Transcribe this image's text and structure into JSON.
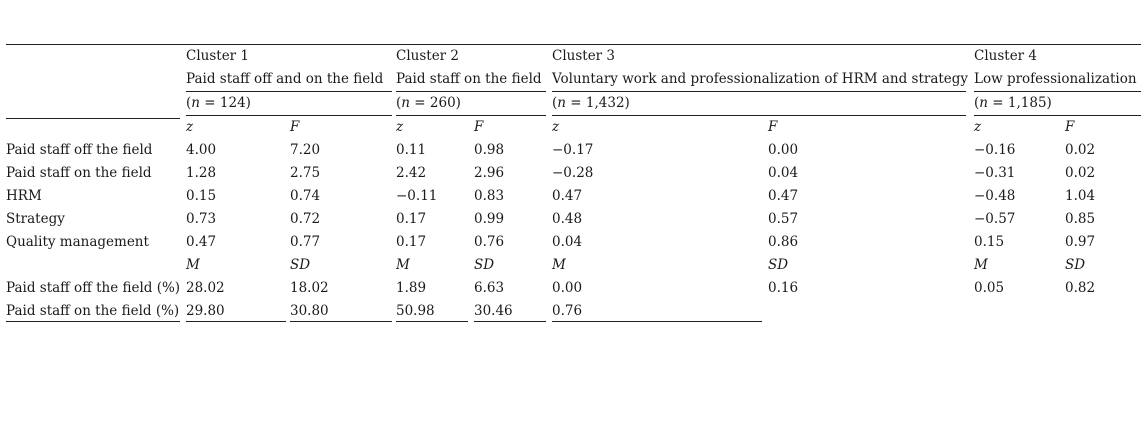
{
  "clusters": [
    {
      "label": "Cluster 1",
      "name": "Paid staff off and on the field",
      "n": "124"
    },
    {
      "label": "Cluster 2",
      "name": "Paid staff on the field",
      "n": "260"
    },
    {
      "label": "Cluster 3",
      "name": "Voluntary work and professionalization of HRM and strategy",
      "n": "1,432"
    },
    {
      "label": "Cluster 4",
      "name": "Low professionalization",
      "n": "1,185"
    }
  ],
  "n_open": "(",
  "n_var": "n",
  "n_eq": " = ",
  "n_close": ")",
  "stat_headers": {
    "z": "z",
    "F": "F",
    "M": "M",
    "SD": "SD"
  },
  "rows": [
    {
      "label": "Paid staff off the field",
      "values": [
        "4.00",
        "7.20",
        "0.11",
        "0.98",
        "−0.17",
        "0.00",
        "−0.16",
        "0.02"
      ]
    },
    {
      "label": "Paid staff on the field",
      "values": [
        "1.28",
        "2.75",
        "2.42",
        "2.96",
        "−0.28",
        "0.04",
        "−0.31",
        "0.02"
      ]
    },
    {
      "label": "HRM",
      "values": [
        "0.15",
        "0.74",
        "−0.11",
        "0.83",
        "0.47",
        "0.47",
        "−0.48",
        "1.04"
      ]
    },
    {
      "label": "Strategy",
      "values": [
        "0.73",
        "0.72",
        "0.17",
        "0.99",
        "0.48",
        "0.57",
        "−0.57",
        "0.85"
      ]
    },
    {
      "label": "Quality management",
      "values": [
        "0.47",
        "0.77",
        "0.17",
        "0.76",
        "0.04",
        "0.86",
        "0.15",
        "0.97"
      ]
    },
    {
      "label": "Paid staff off the field (%)",
      "values": [
        "28.02",
        "18.02",
        "1.89",
        "6.63",
        "0.00",
        "0.16",
        "0.05",
        "0.82"
      ]
    },
    {
      "label": "Paid staff on the field (%)",
      "values": [
        "29.80",
        "30.80",
        "50.98",
        "30.46",
        "0.76",
        "",
        "",
        ""
      ]
    }
  ]
}
